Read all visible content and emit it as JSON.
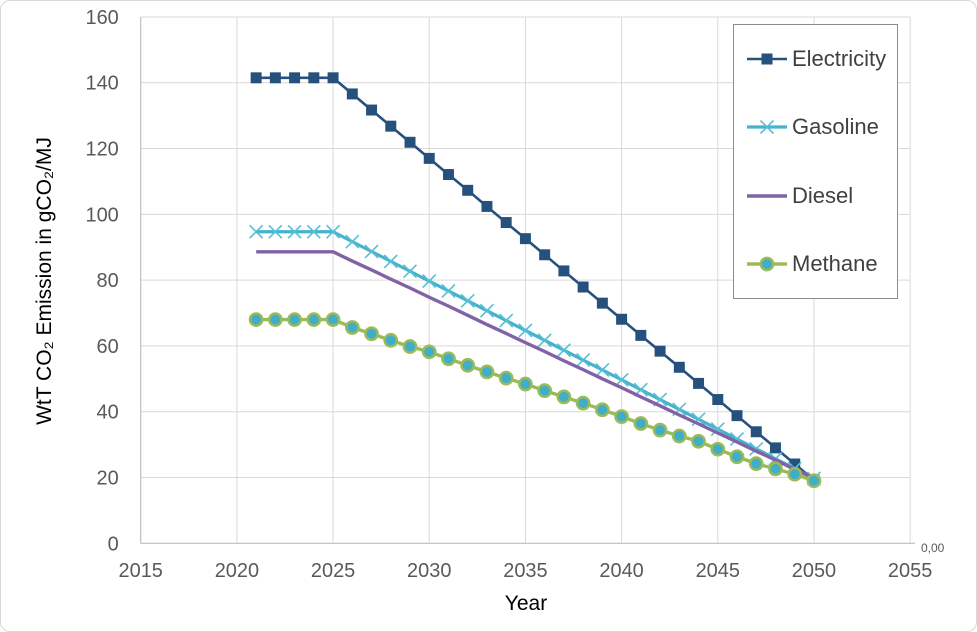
{
  "chart_data": {
    "type": "line",
    "title": "",
    "xlabel": "Year",
    "ylabel": "WtT CO₂ Emission in gCO₂/MJ",
    "secondary_axis_label": "0,00",
    "xlim": [
      2015,
      2055
    ],
    "ylim": [
      0,
      160
    ],
    "x_ticks": [
      2015,
      2020,
      2025,
      2030,
      2035,
      2040,
      2045,
      2050,
      2055
    ],
    "y_ticks": [
      0,
      20,
      40,
      60,
      80,
      100,
      120,
      140,
      160
    ],
    "grid": true,
    "legend_position": "top-right",
    "years": [
      2021,
      2022,
      2023,
      2024,
      2025,
      2026,
      2027,
      2028,
      2029,
      2030,
      2031,
      2032,
      2033,
      2034,
      2035,
      2036,
      2037,
      2038,
      2039,
      2040,
      2041,
      2042,
      2043,
      2044,
      2045,
      2046,
      2047,
      2048,
      2049,
      2050
    ],
    "series": [
      {
        "name": "Electricity",
        "color": "#26517D",
        "marker": "square",
        "marker_color": "#26517D",
        "marker_size": 11,
        "line_width": 2.6,
        "values": [
          141.5,
          141.5,
          141.5,
          141.5,
          141.5,
          136.6,
          131.7,
          126.8,
          121.9,
          117.0,
          112.1,
          107.3,
          102.4,
          97.5,
          92.6,
          87.7,
          82.8,
          77.9,
          73.0,
          68.1,
          63.2,
          58.4,
          53.5,
          48.6,
          43.7,
          38.8,
          33.9,
          29.0,
          24.1,
          19.2
        ]
      },
      {
        "name": "Gasoline",
        "color": "#45B3CB",
        "marker": "x",
        "marker_color": "#55BFD6",
        "marker_size": 13,
        "line_width": 3.2,
        "values": [
          94.7,
          94.7,
          94.7,
          94.7,
          94.7,
          91.7,
          88.7,
          85.7,
          82.7,
          79.7,
          76.7,
          73.7,
          70.7,
          67.7,
          64.7,
          61.7,
          58.7,
          55.7,
          52.7,
          49.7,
          46.7,
          43.7,
          40.7,
          37.7,
          34.7,
          31.7,
          28.7,
          25.7,
          22.7,
          19.7
        ]
      },
      {
        "name": "Diesel",
        "color": "#8262A6",
        "marker": "none",
        "marker_color": "#8262A6",
        "marker_size": 0,
        "line_width": 3.4,
        "values": [
          88.6,
          88.6,
          88.6,
          88.6,
          88.6,
          85.8,
          83.1,
          80.3,
          77.6,
          74.8,
          72.1,
          69.3,
          66.5,
          63.8,
          61.0,
          58.3,
          55.5,
          52.8,
          50.0,
          47.3,
          44.5,
          41.8,
          39.0,
          36.3,
          33.5,
          30.8,
          28.0,
          25.3,
          22.5,
          19.8
        ]
      },
      {
        "name": "Methane",
        "color": "#9BBB59",
        "marker": "circle",
        "marker_color": "#3FAEC6",
        "marker_ring": "#9BBB59",
        "marker_size": 13.2,
        "line_width": 3.4,
        "values": [
          68.0,
          68.0,
          68.0,
          68.0,
          68.0,
          65.6,
          63.7,
          61.7,
          59.8,
          58.2,
          56.1,
          54.1,
          52.1,
          50.2,
          48.4,
          46.4,
          44.5,
          42.6,
          40.6,
          38.5,
          36.4,
          34.4,
          32.6,
          31.0,
          28.6,
          26.3,
          24.2,
          22.6,
          21.0,
          19.0
        ]
      }
    ]
  },
  "style": {
    "gridline_color": "#D9D9D9",
    "axis_line_color": "#B3B3B3",
    "tick_label_color": "#595959",
    "axis_title_color": "#000000",
    "legend_border_color": "#8C8C8C",
    "legend_text_color": "#404040",
    "background": "#FFFFFF"
  }
}
